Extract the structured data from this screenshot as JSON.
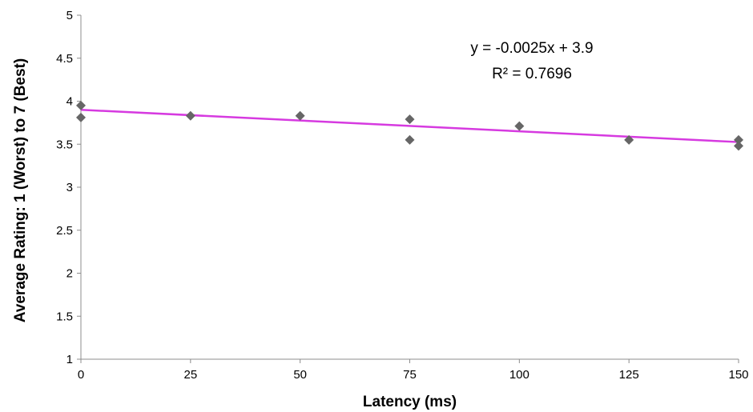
{
  "chart_data": {
    "type": "scatter",
    "title": "",
    "xlabel": "Latency (ms)",
    "ylabel": "Average Rating: 1  (Worst) to 7 (Best)",
    "xlim": [
      0,
      150
    ],
    "ylim": [
      1,
      5
    ],
    "x_ticks": [
      "0",
      "25",
      "50",
      "75",
      "100",
      "125",
      "150"
    ],
    "y_ticks": [
      "1",
      "1.5",
      "2",
      "2.5",
      "3",
      "3.5",
      "4",
      "4.5",
      "5"
    ],
    "grid": false,
    "legend": "none",
    "marker": "diamond",
    "series": [
      {
        "points": [
          {
            "x": 0,
            "y": 3.95
          },
          {
            "x": 0,
            "y": 3.81
          },
          {
            "x": 25,
            "y": 3.83
          },
          {
            "x": 50,
            "y": 3.83
          },
          {
            "x": 75,
            "y": 3.79
          },
          {
            "x": 75,
            "y": 3.55
          },
          {
            "x": 100,
            "y": 3.71
          },
          {
            "x": 125,
            "y": 3.55
          },
          {
            "x": 150,
            "y": 3.55
          },
          {
            "x": 150,
            "y": 3.48
          }
        ],
        "color": "#666666"
      }
    ],
    "trendline": {
      "type": "linear",
      "slope": -0.0025,
      "intercept": 3.9,
      "color": "#d63ae0",
      "equation_label": "y = -0.0025x + 3.9",
      "r2_label": "R² = 0.7696"
    }
  }
}
